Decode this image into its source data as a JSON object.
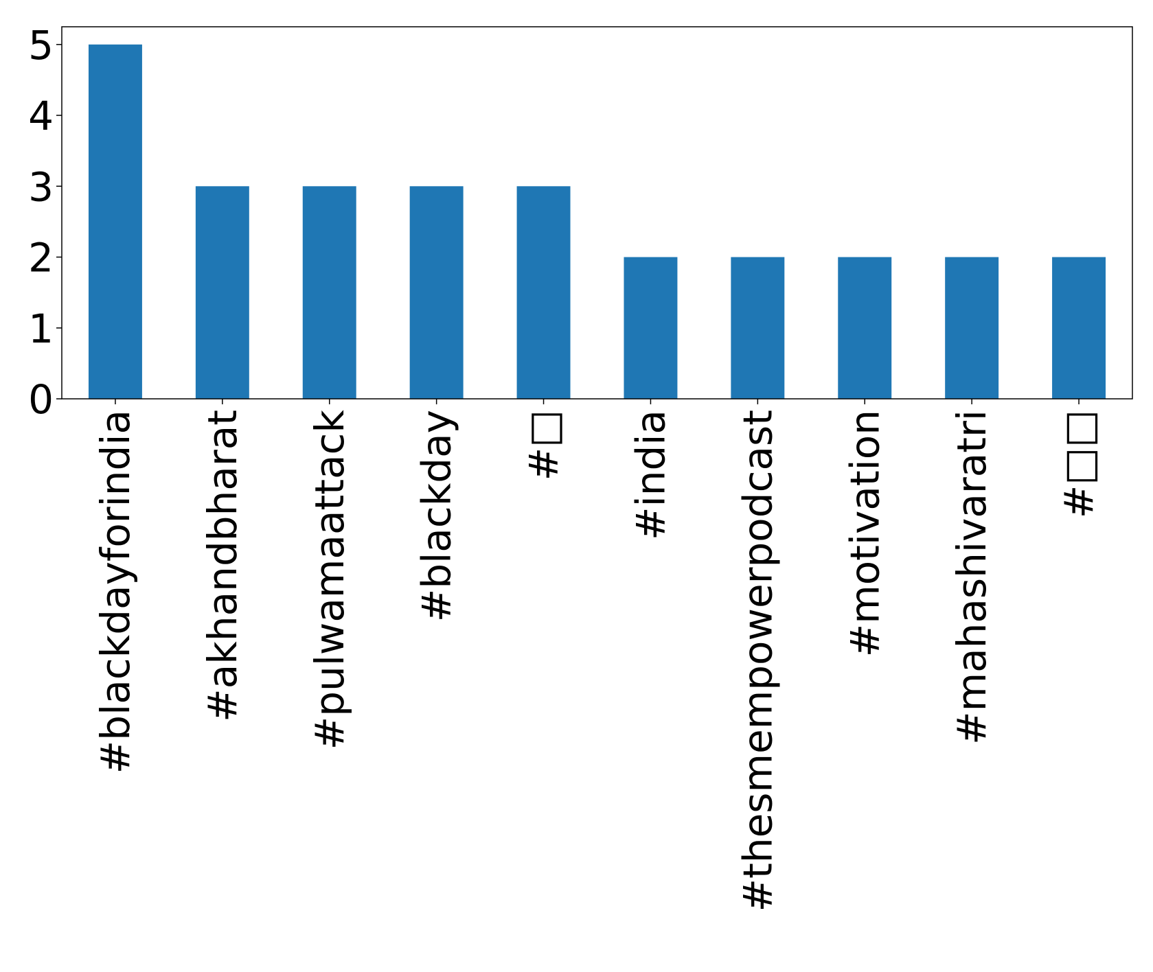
{
  "chart_data": {
    "type": "bar",
    "categories": [
      "#blackdayforindia",
      "#akhandbharat",
      "#pulwamaattack",
      "#blackday",
      "#□",
      "#india",
      "#thesmempowerpodcast",
      "#motivation",
      "#mahashivaratri",
      "#□□"
    ],
    "values": [
      5,
      3,
      3,
      3,
      3,
      2,
      2,
      2,
      2,
      2
    ],
    "yticks": [
      "0",
      "1",
      "2",
      "3",
      "4",
      "5"
    ],
    "ylim": [
      0,
      5.25
    ],
    "bar_color": "#1f77b4",
    "title": "",
    "xlabel": "",
    "ylabel": "",
    "grid": false,
    "legend": "none"
  }
}
